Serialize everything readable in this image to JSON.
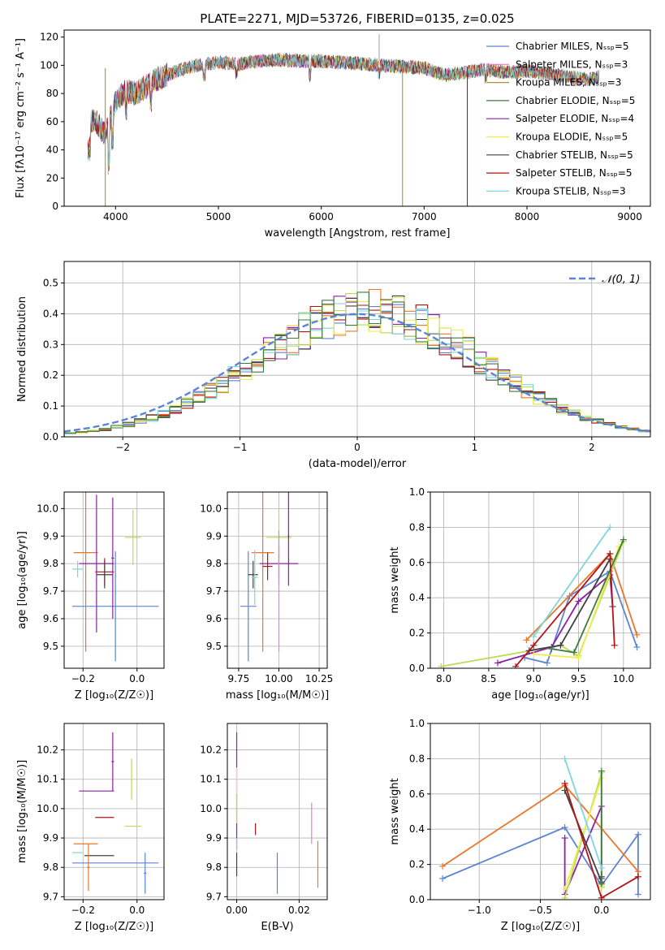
{
  "title": "PLATE=2271, MJD=53726, FIBERID=0135, z=0.025",
  "colors": {
    "c0": "#5b84d6",
    "c1": "#e77fc8",
    "c2": "#b5902e",
    "c3": "#3f7a3d",
    "c4": "#8e1fa6",
    "c5": "#f0ec4f",
    "c6": "#404040",
    "c7": "#b21515",
    "c8": "#7ed6dd",
    "c9": "#e9772b",
    "c10": "#b9dd55",
    "c11": "#d43a3a"
  },
  "chart_data": [
    {
      "id": "spectrum",
      "type": "line",
      "title": "PLATE=2271, MJD=53726, FIBERID=0135, z=0.025",
      "xlabel": "wavelength [Angstrom, rest frame]",
      "ylabel": "Flux [fλ10⁻¹⁷ erg cm⁻² s⁻¹ A⁻¹]",
      "xlim": [
        3500,
        9200
      ],
      "ylim": [
        0,
        125
      ],
      "xticks": [
        4000,
        5000,
        6000,
        7000,
        8000,
        9000
      ],
      "yticks": [
        0,
        20,
        40,
        60,
        80,
        100,
        120
      ],
      "grid": false,
      "legend": "top-right",
      "spectrum_shape": {
        "x": [
          3730,
          3800,
          3900,
          4000,
          4100,
          4200,
          4300,
          4400,
          4500,
          4600,
          4700,
          4800,
          4900,
          5000,
          5200,
          5400,
          5600,
          5800,
          6000,
          6200,
          6400,
          6600,
          6800,
          7000,
          7200,
          7400,
          7600,
          7800,
          8000,
          8200,
          8400,
          8600,
          8700
        ],
        "y": [
          58,
          62,
          50,
          75,
          82,
          80,
          85,
          90,
          93,
          96,
          98,
          100,
          101,
          102,
          101,
          103,
          104,
          103,
          103,
          102,
          101,
          100,
          99,
          98,
          93,
          95,
          97,
          95,
          96,
          94,
          92,
          90,
          92
        ]
      },
      "series": [
        {
          "name": "Chabrier MILES, N_SSP=5",
          "color": "#5b84d6"
        },
        {
          "name": "Salpeter MILES, N_SSP=3",
          "color": "#e77fc8"
        },
        {
          "name": "Kroupa MILES, N_SSP=3",
          "color": "#b5902e"
        },
        {
          "name": "Chabrier ELODIE, N_SSP=5",
          "color": "#3f7a3d"
        },
        {
          "name": "Salpeter ELODIE, N_SSP=4",
          "color": "#8e1fa6"
        },
        {
          "name": "Kroupa ELODIE, N_SSP=5",
          "color": "#f0ec4f"
        },
        {
          "name": "Chabrier STELIB, N_SSP=5",
          "color": "#404040"
        },
        {
          "name": "Salpeter STELIB, N_SSP=5",
          "color": "#b21515"
        },
        {
          "name": "Kroupa STELIB, N_SSP=3",
          "color": "#7ed6dd"
        }
      ]
    },
    {
      "id": "residuals",
      "type": "line",
      "xlabel": "(data-model)/error",
      "ylabel": "Normed distribution",
      "xlim": [
        -2.5,
        2.5
      ],
      "ylim": [
        0,
        0.57
      ],
      "xticks": [
        -2,
        -1,
        0,
        1,
        2
      ],
      "yticks": [
        0.0,
        0.1,
        0.2,
        0.3,
        0.4,
        0.5
      ],
      "grid": true,
      "legend": "top-right",
      "normal_label": "𝒩(0, 1)",
      "hist_bins": [
        -2.5,
        -2.4,
        -2.3,
        -2.2,
        -2.1,
        -2.0,
        -1.9,
        -1.8,
        -1.7,
        -1.6,
        -1.5,
        -1.4,
        -1.3,
        -1.2,
        -1.1,
        -1.0,
        -0.9,
        -0.8,
        -0.7,
        -0.6,
        -0.5,
        -0.4,
        -0.3,
        -0.2,
        -0.1,
        0.0,
        0.1,
        0.2,
        0.3,
        0.4,
        0.5,
        0.6,
        0.7,
        0.8,
        0.9,
        1.0,
        1.1,
        1.2,
        1.3,
        1.4,
        1.5,
        1.6,
        1.7,
        1.8,
        1.9,
        2.0,
        2.1,
        2.2,
        2.3,
        2.4,
        2.5
      ]
    },
    {
      "id": "age-z",
      "type": "scatter",
      "xlabel": "Z [log₁₀(Z/Z☉)]",
      "ylabel": "age  [log₁₀(age/yr)]",
      "xlim": [
        -0.27,
        0.1
      ],
      "ylim": [
        9.42,
        10.06
      ],
      "xticks": [
        -0.2,
        0.0
      ],
      "yticks": [
        9.5,
        9.6,
        9.7,
        9.8,
        9.9,
        10.0
      ],
      "grid": true,
      "points": [
        {
          "x": -0.08,
          "y": 9.645,
          "xerr": 0.16,
          "yerr": 0.2,
          "color": "#5b84d6"
        },
        {
          "x": -0.19,
          "y": 9.84,
          "xerr": 0.045,
          "yerr": 0.36,
          "color": "#e9772b"
        },
        {
          "x": -0.15,
          "y": 9.8,
          "xerr": 0.065,
          "yerr": 0.25,
          "color": "#8e1fa6"
        },
        {
          "x": -0.015,
          "y": 9.895,
          "xerr": 0.03,
          "yerr": 0.1,
          "color": "#b9dd55"
        },
        {
          "x": -0.12,
          "y": 9.77,
          "xerr": 0.035,
          "yerr": 0.05,
          "color": "#b21515"
        },
        {
          "x": -0.12,
          "y": 9.76,
          "xerr": 0.03,
          "yerr": 0.05,
          "color": "#404040"
        },
        {
          "x": -0.22,
          "y": 9.78,
          "xerr": 0.02,
          "yerr": 0.03,
          "color": "#7ed6dd"
        },
        {
          "x": -0.09,
          "y": 9.82,
          "xerr": 0.005,
          "yerr": 0.22,
          "color": "#8e1fa6"
        }
      ]
    },
    {
      "id": "age-mass",
      "type": "scatter",
      "xlabel": "mass [log₁₀(M/M☉)]",
      "xlim": [
        9.68,
        10.3
      ],
      "ylim": [
        9.42,
        10.06
      ],
      "xticks": [
        9.75,
        10.0,
        10.25
      ],
      "yticks": [
        9.5,
        9.6,
        9.7,
        9.8,
        9.9,
        10.0
      ],
      "grid": true,
      "points": [
        {
          "x": 9.81,
          "y": 9.645,
          "xerr": 0.05,
          "yerr": 0.2,
          "color": "#5b84d6"
        },
        {
          "x": 9.9,
          "y": 9.84,
          "xerr": 0.07,
          "yerr": 0.36,
          "color": "#e9772b"
        },
        {
          "x": 10.0,
          "y": 9.8,
          "xerr": 0.12,
          "yerr": 0.07,
          "color": "#8e1fa6"
        },
        {
          "x": 10.0,
          "y": 9.895,
          "xerr": 0.08,
          "yerr": 0.1,
          "color": "#b9dd55"
        },
        {
          "x": 9.93,
          "y": 9.79,
          "xerr": 0.03,
          "yerr": 0.05,
          "color": "#b21515"
        },
        {
          "x": 9.84,
          "y": 9.76,
          "xerr": 0.03,
          "yerr": 0.05,
          "color": "#404040"
        },
        {
          "x": 9.85,
          "y": 9.75,
          "xerr": 0.02,
          "yerr": 0.1,
          "color": "#7ed6dd"
        },
        {
          "x": 10.06,
          "y": 9.9,
          "xerr": 0.005,
          "yerr": 0.18,
          "color": "#8e1fa6"
        },
        {
          "x": 10.0,
          "y": 9.7,
          "xerr": 0.005,
          "yerr": 0.22,
          "color": "#e77fc8"
        }
      ]
    },
    {
      "id": "weight-age",
      "type": "line",
      "xlabel": "age  [log₁₀(age/yr)]",
      "ylabel": "mass weight",
      "xlim": [
        7.85,
        10.3
      ],
      "ylim": [
        0,
        1.0
      ],
      "xticks": [
        8.0,
        8.5,
        9.0,
        9.5,
        10.0
      ],
      "yticks": [
        0.0,
        0.2,
        0.4,
        0.6,
        0.8,
        1.0
      ],
      "grid": true,
      "series": [
        {
          "color": "#5b84d6",
          "x": [
            8.9,
            9.15,
            9.4,
            9.85,
            10.15
          ],
          "y": [
            0.06,
            0.03,
            0.41,
            0.55,
            0.12
          ]
        },
        {
          "color": "#e9772b",
          "x": [
            8.92,
            9.85,
            10.15
          ],
          "y": [
            0.16,
            0.65,
            0.19
          ]
        },
        {
          "color": "#8e1fa6",
          "x": [
            8.6,
            9.2,
            9.5,
            9.85,
            9.88
          ],
          "y": [
            0.03,
            0.12,
            0.38,
            0.53,
            0.35
          ]
        },
        {
          "color": "#b9dd55",
          "x": [
            7.97,
            9.3,
            9.5,
            10.0
          ],
          "y": [
            0.01,
            0.13,
            0.07,
            0.72
          ]
        },
        {
          "color": "#f0ec4f",
          "x": [
            9.0,
            9.5,
            9.95
          ],
          "y": [
            0.08,
            0.06,
            0.69
          ]
        },
        {
          "color": "#404040",
          "x": [
            8.95,
            9.3,
            9.85
          ],
          "y": [
            0.1,
            0.13,
            0.62
          ]
        },
        {
          "color": "#3f7a3d",
          "x": [
            9.2,
            9.45,
            10.0
          ],
          "y": [
            0.11,
            0.09,
            0.73
          ]
        },
        {
          "color": "#b21515",
          "x": [
            8.8,
            9.0,
            9.85,
            9.9
          ],
          "y": [
            0.01,
            0.13,
            0.65,
            0.13
          ]
        },
        {
          "color": "#7ed6dd",
          "x": [
            9.0,
            9.85
          ],
          "y": [
            0.18,
            0.8
          ]
        }
      ]
    },
    {
      "id": "mass-z",
      "type": "scatter",
      "xlabel": "Z [log₁₀(Z/Z☉)]",
      "ylabel": "mass [log₁₀(M/M☉)]",
      "xlim": [
        -0.27,
        0.1
      ],
      "ylim": [
        9.69,
        10.29
      ],
      "xticks": [
        -0.2,
        0.0
      ],
      "yticks": [
        9.7,
        9.8,
        9.9,
        10.0,
        10.1,
        10.2
      ],
      "grid": true,
      "points": [
        {
          "x": -0.08,
          "y": 9.815,
          "xerr": 0.16,
          "yerr": 0.0,
          "color": "#5b84d6"
        },
        {
          "x": -0.19,
          "y": 9.88,
          "xerr": 0.045,
          "yerr": 0.0,
          "color": "#e9772b"
        },
        {
          "x": -0.15,
          "y": 10.06,
          "xerr": 0.065,
          "yerr": 0.0,
          "color": "#8e1fa6"
        },
        {
          "x": -0.015,
          "y": 9.94,
          "xerr": 0.03,
          "yerr": 0.0,
          "color": "#b9dd55"
        },
        {
          "x": -0.12,
          "y": 9.97,
          "xerr": 0.035,
          "yerr": 0.0,
          "color": "#b21515"
        },
        {
          "x": -0.14,
          "y": 9.84,
          "xerr": 0.055,
          "yerr": 0.0,
          "color": "#404040"
        },
        {
          "x": -0.22,
          "y": 9.85,
          "xerr": 0.02,
          "yerr": 0.0,
          "color": "#7ed6dd"
        },
        {
          "x": -0.09,
          "y": 10.16,
          "xerr": 0.005,
          "yerr": 0.1,
          "color": "#8e1fa6"
        },
        {
          "x": -0.18,
          "y": 9.8,
          "xerr": 0.005,
          "yerr": 0.08,
          "color": "#e9772b"
        },
        {
          "x": -0.02,
          "y": 10.1,
          "xerr": 0.005,
          "yerr": 0.07,
          "color": "#b9dd55"
        },
        {
          "x": 0.03,
          "y": 9.78,
          "xerr": 0.005,
          "yerr": 0.07,
          "color": "#5b84d6"
        }
      ]
    },
    {
      "id": "mass-ebv",
      "type": "scatter",
      "xlabel": "E(B-V)",
      "xlim": [
        -0.003,
        0.029
      ],
      "ylim": [
        9.69,
        10.29
      ],
      "xticks": [
        0.0,
        0.02
      ],
      "yticks": [
        9.7,
        9.8,
        9.9,
        10.0,
        10.1,
        10.2
      ],
      "grid": true,
      "points": [
        {
          "x": 0.013,
          "y": 9.78,
          "yerr": 0.07,
          "color": "#5b84d6"
        },
        {
          "x": 0.0,
          "y": 10.06,
          "yerr": 0.2,
          "color": "#8e1fa6"
        },
        {
          "x": 0.0,
          "y": 10.05,
          "yerr": 0.09,
          "color": "#f0ec4f"
        },
        {
          "x": 0.0,
          "y": 10.0,
          "yerr": 0.05,
          "color": "#b9dd55"
        },
        {
          "x": 0.0,
          "y": 9.81,
          "yerr": 0.04,
          "color": "#404040"
        },
        {
          "x": 0.006,
          "y": 9.93,
          "yerr": 0.02,
          "color": "#b21515"
        },
        {
          "x": 0.024,
          "y": 9.95,
          "yerr": 0.07,
          "color": "#e77fc8"
        },
        {
          "x": 0.026,
          "y": 9.81,
          "yerr": 0.08,
          "color": "#e9772b"
        },
        {
          "x": 0.0,
          "y": 9.88,
          "yerr": 0.02,
          "color": "#7ed6dd"
        }
      ]
    },
    {
      "id": "weight-z",
      "type": "line",
      "xlabel": "Z [log₁₀(Z/Z☉)]",
      "ylabel": "mass weight",
      "xlim": [
        -1.4,
        0.4
      ],
      "ylim": [
        0,
        1.0
      ],
      "xticks": [
        -1.0,
        -0.5,
        0.0
      ],
      "yticks": [
        0.0,
        0.2,
        0.4,
        0.6,
        0.8,
        1.0
      ],
      "grid": true,
      "series": [
        {
          "color": "#5b84d6",
          "x": [
            -1.3,
            -0.3,
            0.0,
            0.3,
            0.3
          ],
          "y": [
            0.12,
            0.41,
            0.08,
            0.37,
            0.03
          ]
        },
        {
          "color": "#e9772b",
          "x": [
            -1.3,
            -0.3,
            0.3
          ],
          "y": [
            0.19,
            0.65,
            0.16
          ]
        },
        {
          "color": "#8e1fa6",
          "x": [
            -0.3,
            -0.3,
            0.0,
            0.0
          ],
          "y": [
            0.35,
            0.03,
            0.53,
            0.12
          ]
        },
        {
          "color": "#b9dd55",
          "x": [
            -0.3,
            0.0,
            0.0
          ],
          "y": [
            0.01,
            0.72,
            0.07
          ]
        },
        {
          "color": "#f0ec4f",
          "x": [
            -0.3,
            0.0,
            0.0
          ],
          "y": [
            0.06,
            0.69,
            0.08
          ]
        },
        {
          "color": "#404040",
          "x": [
            -0.3,
            0.0,
            0.0
          ],
          "y": [
            0.62,
            0.1,
            0.13
          ]
        },
        {
          "color": "#3f7a3d",
          "x": [
            0.0,
            0.0
          ],
          "y": [
            0.73,
            0.09
          ]
        },
        {
          "color": "#b21515",
          "x": [
            -0.3,
            0.0,
            0.3
          ],
          "y": [
            0.66,
            0.01,
            0.13
          ]
        },
        {
          "color": "#7ed6dd",
          "x": [
            -0.3,
            0.0
          ],
          "y": [
            0.8,
            0.18
          ]
        }
      ]
    }
  ]
}
